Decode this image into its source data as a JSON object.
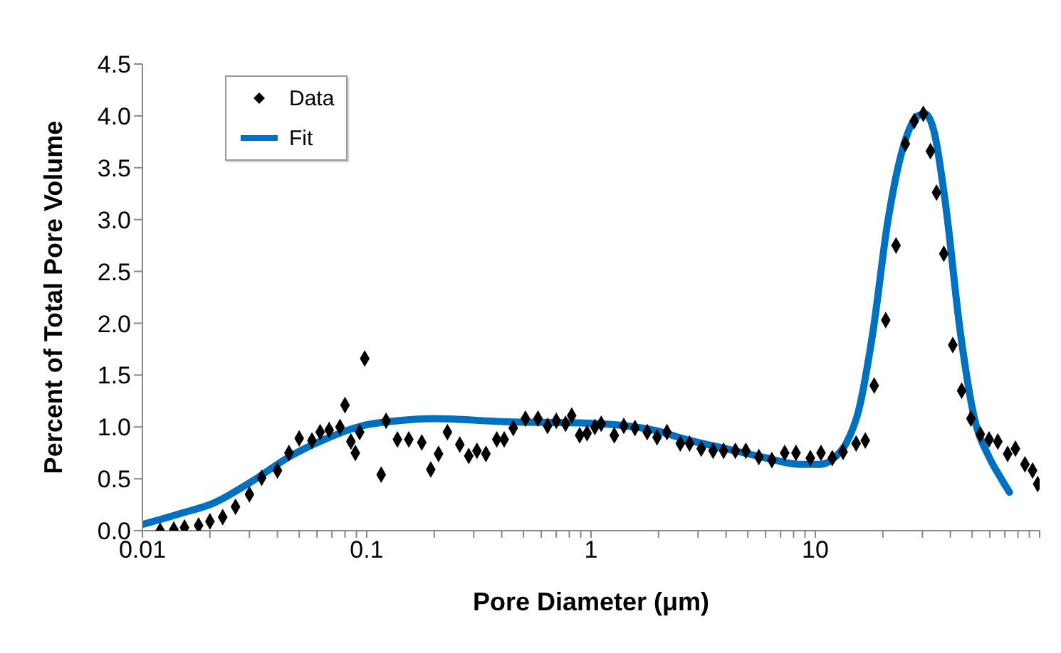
{
  "chart_data": {
    "type": "scatter",
    "xlabel": "Pore Diameter (μm)",
    "ylabel": "Percent of Total Pore Volume",
    "log": "x",
    "xlim": [
      0.01,
      100
    ],
    "ylim": [
      0,
      4.5
    ],
    "xticks": [
      0.01,
      {
        "value": 0.02,
        "label": null
      },
      {
        "value": 0.03,
        "label": null
      },
      {
        "value": 0.04,
        "label": null
      },
      {
        "value": 0.05,
        "label": null
      },
      {
        "value": 0.06,
        "label": null
      },
      {
        "value": 0.07,
        "label": null
      },
      {
        "value": 0.08,
        "label": null
      },
      {
        "value": 0.09,
        "label": null
      },
      0.1,
      {
        "value": 0.2,
        "label": null
      },
      {
        "value": 0.3,
        "label": null
      },
      {
        "value": 0.4,
        "label": null
      },
      {
        "value": 0.5,
        "label": null
      },
      {
        "value": 0.6,
        "label": null
      },
      {
        "value": 0.7,
        "label": null
      },
      {
        "value": 0.8,
        "label": null
      },
      {
        "value": 0.9,
        "label": null
      },
      1,
      {
        "value": 2,
        "label": null
      },
      {
        "value": 3,
        "label": null
      },
      {
        "value": 4,
        "label": null
      },
      {
        "value": 5,
        "label": null
      },
      {
        "value": 6,
        "label": null
      },
      {
        "value": 7,
        "label": null
      },
      {
        "value": 8,
        "label": null
      },
      {
        "value": 9,
        "label": null
      },
      10,
      {
        "value": 20,
        "label": null
      },
      {
        "value": 30,
        "label": null
      },
      {
        "value": 40,
        "label": null
      },
      {
        "value": 50,
        "label": null
      },
      {
        "value": 60,
        "label": null
      },
      {
        "value": 70,
        "label": null
      },
      {
        "value": 80,
        "label": null
      },
      {
        "value": 90,
        "label": null
      },
      {
        "value": 100,
        "label": null
      }
    ],
    "yticks": [
      {
        "value": 0,
        "label": "0.0"
      },
      {
        "value": 0.5,
        "label": "0.5"
      },
      {
        "value": 1,
        "label": "1.0"
      },
      {
        "value": 1.5,
        "label": "1.5"
      },
      {
        "value": 2,
        "label": "2.0"
      },
      {
        "value": 2.5,
        "label": "2.5"
      },
      {
        "value": 3,
        "label": "3.0"
      },
      {
        "value": 3.5,
        "label": "3.5"
      },
      {
        "value": 4,
        "label": "4.0"
      },
      {
        "value": 4.5,
        "label": "4.5"
      }
    ],
    "grid": false,
    "legend": "top left",
    "series": [
      {
        "name": "Data",
        "marker": "diamond",
        "color": "#000000",
        "x": [
          0.012,
          0.0138,
          0.0154,
          0.0178,
          0.02,
          0.0228,
          0.026,
          0.03,
          0.034,
          0.04,
          0.045,
          0.05,
          0.057,
          0.062,
          0.068,
          0.076,
          0.08,
          0.085,
          0.089,
          0.093,
          0.098,
          0.116,
          0.122,
          0.137,
          0.154,
          0.176,
          0.193,
          0.209,
          0.229,
          0.26,
          0.285,
          0.31,
          0.34,
          0.38,
          0.41,
          0.45,
          0.51,
          0.58,
          0.64,
          0.7,
          0.77,
          0.82,
          0.89,
          0.96,
          1.04,
          1.11,
          1.27,
          1.4,
          1.57,
          1.78,
          1.97,
          2.18,
          2.5,
          2.75,
          3.1,
          3.5,
          3.9,
          4.4,
          4.9,
          5.6,
          6.4,
          7.3,
          8.2,
          9.5,
          10.6,
          11.9,
          13.3,
          15.2,
          16.7,
          18.3,
          20.6,
          22.9,
          25.2,
          27.6,
          30.3,
          32.6,
          34.7,
          37.4,
          41,
          44.9,
          49.4,
          54.4,
          59.5,
          65.1,
          72,
          78,
          86,
          93,
          98
        ],
        "values": [
          0,
          0.01,
          0.03,
          0.05,
          0.09,
          0.13,
          0.23,
          0.35,
          0.51,
          0.58,
          0.75,
          0.89,
          0.87,
          0.95,
          0.97,
          1,
          1.21,
          0.86,
          0.75,
          0.95,
          1.66,
          0.54,
          1.06,
          0.88,
          0.88,
          0.85,
          0.59,
          0.74,
          0.95,
          0.83,
          0.72,
          0.77,
          0.74,
          0.88,
          0.88,
          0.99,
          1.08,
          1.08,
          1.01,
          1.06,
          1.03,
          1.11,
          0.92,
          0.94,
          1,
          1.03,
          0.92,
          1.01,
          0.99,
          0.95,
          0.9,
          0.95,
          0.84,
          0.84,
          0.79,
          0.77,
          0.77,
          0.77,
          0.77,
          0.71,
          0.68,
          0.75,
          0.75,
          0.7,
          0.75,
          0.7,
          0.76,
          0.84,
          0.87,
          1.4,
          2.03,
          2.75,
          3.73,
          3.95,
          4.02,
          3.66,
          3.26,
          2.67,
          1.79,
          1.35,
          1.08,
          0.93,
          0.88,
          0.86,
          0.74,
          0.79,
          0.64,
          0.58,
          0.45
        ]
      },
      {
        "name": "Fit",
        "type": "line",
        "marker": "none",
        "line_style": "solid",
        "color": "#0070c0",
        "x": [
          0.01,
          0.0145,
          0.021,
          0.031,
          0.045,
          0.065,
          0.095,
          0.137,
          0.2,
          0.42,
          0.89,
          1.3,
          1.9,
          2.75,
          4,
          5.8,
          8.5,
          10.6,
          12.4,
          13.7,
          15.6,
          18.1,
          21,
          24.5,
          28.7,
          30.8,
          33.9,
          38,
          44.2,
          51,
          59.5,
          66.6,
          73.4
        ],
        "values": [
          0.06,
          0.16,
          0.27,
          0.48,
          0.71,
          0.88,
          1.01,
          1.06,
          1.08,
          1.05,
          1.04,
          1.02,
          0.97,
          0.87,
          0.79,
          0.71,
          0.64,
          0.64,
          0.72,
          0.84,
          1.16,
          1.93,
          2.97,
          3.68,
          4,
          4.02,
          3.84,
          3.16,
          1.93,
          1.1,
          0.71,
          0.52,
          0.37
        ]
      }
    ]
  }
}
